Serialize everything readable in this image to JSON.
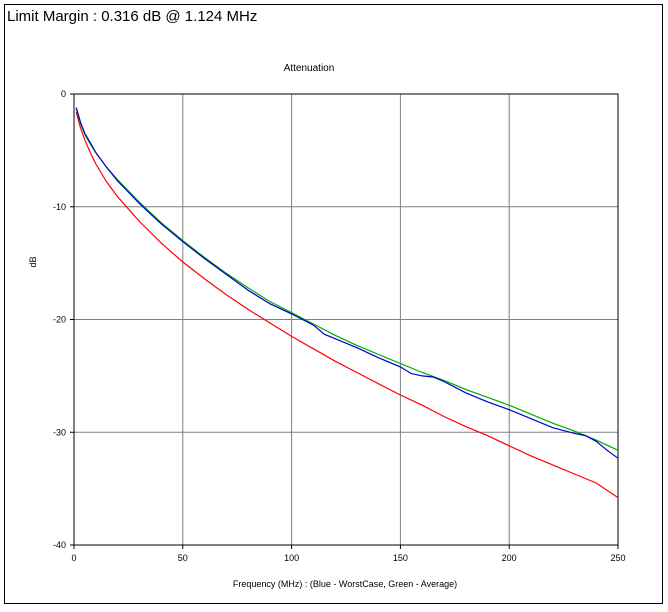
{
  "header": {
    "limit_margin_text": "Limit Margin : 0.316 dB @ 1.124 MHz"
  },
  "chart_data": {
    "type": "line",
    "title": "Attenuation",
    "xlabel": "Frequency (MHz) : (Blue - WorstCase, Green - Average)",
    "ylabel": "dB",
    "xlim": [
      0,
      250
    ],
    "ylim": [
      -40,
      0
    ],
    "xticks": [
      0,
      50,
      100,
      150,
      200,
      250
    ],
    "yticks": [
      0,
      -10,
      -20,
      -30,
      -40
    ],
    "grid": true,
    "series": [
      {
        "color": "#ff0000",
        "x": [
          1,
          3,
          5,
          8,
          10,
          15,
          20,
          30,
          40,
          50,
          60,
          70,
          80,
          90,
          100,
          110,
          120,
          130,
          140,
          150,
          160,
          170,
          180,
          190,
          200,
          210,
          220,
          230,
          240,
          250
        ],
        "y": [
          -1.6,
          -3.0,
          -4.1,
          -5.4,
          -6.2,
          -7.8,
          -9.1,
          -11.3,
          -13.2,
          -14.9,
          -16.4,
          -17.8,
          -19.1,
          -20.3,
          -21.5,
          -22.6,
          -23.7,
          -24.7,
          -25.7,
          -26.7,
          -27.6,
          -28.6,
          -29.5,
          -30.3,
          -31.2,
          -32.1,
          -32.9,
          -33.7,
          -34.5,
          -35.8
        ]
      },
      {
        "color": "#00aa00",
        "x": [
          1,
          3,
          5,
          8,
          10,
          15,
          20,
          30,
          40,
          50,
          60,
          70,
          80,
          90,
          100,
          110,
          120,
          130,
          140,
          150,
          160,
          170,
          180,
          190,
          200,
          210,
          220,
          230,
          240,
          250
        ],
        "y": [
          -1.3,
          -2.6,
          -3.6,
          -4.6,
          -5.2,
          -6.5,
          -7.6,
          -9.6,
          -11.4,
          -13.0,
          -14.5,
          -15.9,
          -17.2,
          -18.4,
          -19.4,
          -20.4,
          -21.4,
          -22.3,
          -23.1,
          -23.9,
          -24.7,
          -25.4,
          -26.2,
          -26.9,
          -27.6,
          -28.4,
          -29.2,
          -29.9,
          -30.7,
          -31.6
        ]
      },
      {
        "color": "#0000cc",
        "x": [
          1,
          3,
          5,
          8,
          10,
          15,
          20,
          30,
          40,
          50,
          60,
          70,
          80,
          90,
          100,
          110,
          115,
          120,
          130,
          140,
          150,
          155,
          160,
          165,
          170,
          180,
          190,
          200,
          210,
          220,
          230,
          235,
          240,
          245,
          250
        ],
        "y": [
          -1.2,
          -2.5,
          -3.5,
          -4.5,
          -5.2,
          -6.5,
          -7.7,
          -9.7,
          -11.5,
          -13.1,
          -14.6,
          -16.0,
          -17.4,
          -18.6,
          -19.5,
          -20.5,
          -21.3,
          -21.7,
          -22.5,
          -23.4,
          -24.2,
          -24.8,
          -25.0,
          -25.1,
          -25.5,
          -26.5,
          -27.3,
          -28.0,
          -28.8,
          -29.6,
          -30.1,
          -30.3,
          -30.8,
          -31.6,
          -32.3
        ]
      }
    ]
  }
}
